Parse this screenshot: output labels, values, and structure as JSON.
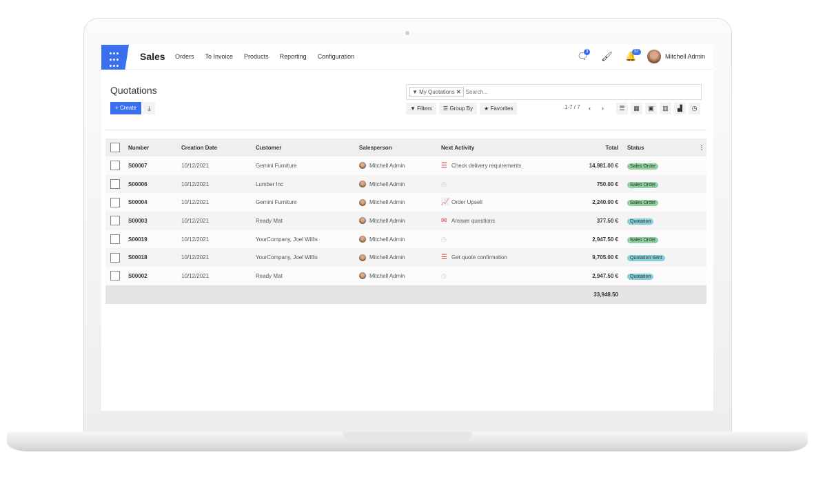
{
  "navbar": {
    "brand": "Sales",
    "menu": [
      "Orders",
      "To Invoice",
      "Products",
      "Reporting",
      "Configuration"
    ],
    "messages_badge": "3",
    "activities_badge": "32",
    "user": "Mitchell Admin",
    "accent": "#3a6ff0"
  },
  "page": {
    "title": "Quotations",
    "create_label": "+ Create",
    "download_icon": "download-icon"
  },
  "search": {
    "facet": "My Quotations",
    "placeholder": "Search..."
  },
  "filters": {
    "filters": "Filters",
    "group_by": "Group By",
    "favorites": "Favorites"
  },
  "pager": {
    "text": "1-7 / 7"
  },
  "table": {
    "headers": [
      "Number",
      "Creation Date",
      "Customer",
      "Salesperson",
      "Next Activity",
      "Total",
      "Status"
    ],
    "rows": [
      {
        "number": "S00007",
        "date": "10/12/2021",
        "customer": "Gemini Furniture",
        "salesperson": "Mitchell Admin",
        "activity_icon": "tasks-icon",
        "activity": "Check delivery requirements",
        "total": "14,981.00 €",
        "status": "Sales Order",
        "status_color": "#8fd19e"
      },
      {
        "number": "S00006",
        "date": "10/12/2021",
        "customer": "Lumber Inc",
        "salesperson": "Mitchell Admin",
        "activity_icon": "clock-icon",
        "activity": "",
        "total": "750.00 €",
        "status": "Sales Order",
        "status_color": "#8fd19e"
      },
      {
        "number": "S00004",
        "date": "10/12/2021",
        "customer": "Gemini Furniture",
        "salesperson": "Mitchell Admin",
        "activity_icon": "chart-line-icon",
        "activity": "Order Upsell",
        "total": "2,240.00 €",
        "status": "Sales Order",
        "status_color": "#8fd19e"
      },
      {
        "number": "S00003",
        "date": "10/12/2021",
        "customer": "Ready Mat",
        "salesperson": "Mitchell Admin",
        "activity_icon": "envelope-icon",
        "activity": "Answer questions",
        "total": "377.50 €",
        "status": "Quotation",
        "status_color": "#86cfda"
      },
      {
        "number": "S00019",
        "date": "10/12/2021",
        "customer": "YourCompany, Joel Willis",
        "salesperson": "Mitchell Admin",
        "activity_icon": "clock-icon",
        "activity": "",
        "total": "2,947.50 €",
        "status": "Sales Order",
        "status_color": "#8fd19e"
      },
      {
        "number": "S00018",
        "date": "10/12/2021",
        "customer": "YourCompany, Joel Willis",
        "salesperson": "Mitchell Admin",
        "activity_icon": "tasks-icon",
        "activity": "Get quote confirmation",
        "total": "9,705.00 €",
        "status": "Quotation Sent",
        "status_color": "#86cfda"
      },
      {
        "number": "S00002",
        "date": "10/12/2021",
        "customer": "Ready Mat",
        "salesperson": "Mitchell Admin",
        "activity_icon": "clock-icon",
        "activity": "",
        "total": "2,947.50 €",
        "status": "Quotation",
        "status_color": "#86cfda"
      }
    ],
    "grand_total": "33,948.50"
  }
}
